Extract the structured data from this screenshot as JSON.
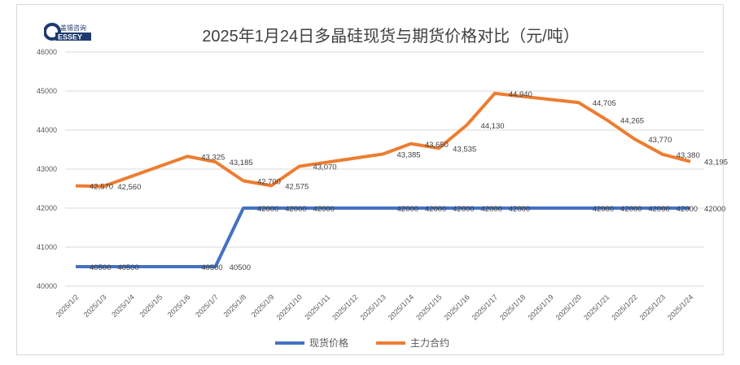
{
  "logo": {
    "cn": "盖锡咨询",
    "en": "GESSEY"
  },
  "chart_data": {
    "type": "line",
    "title": "2025年1月24日多晶硅现货与期货价格对比（元/吨）",
    "categories": [
      "2025/1/2",
      "2025/1/3",
      "2025/1/4",
      "2025/1/5",
      "2025/1/6",
      "2025/1/7",
      "2025/1/8",
      "2025/1/9",
      "2025/1/10",
      "2025/1/11",
      "2025/1/12",
      "2025/1/13",
      "2025/1/14",
      "2025/1/15",
      "2025/1/16",
      "2025/1/17",
      "2025/1/18",
      "2025/1/19",
      "2025/1/20",
      "2025/1/21",
      "2025/1/22",
      "2025/1/23",
      "2025/1/24"
    ],
    "ylim": [
      40000,
      46000
    ],
    "yticks": [
      "40000",
      "41000",
      "42000",
      "43000",
      "44000",
      "45000",
      "46000"
    ],
    "grid": true,
    "legend_position": "bottom",
    "series": [
      {
        "name": "现货价格",
        "color": "#4472c4",
        "label_format": "plain",
        "values": [
          40500,
          40500,
          null,
          null,
          40500,
          40500,
          42000,
          42000,
          42000,
          null,
          null,
          42000,
          42000,
          42000,
          42000,
          42000,
          null,
          null,
          42000,
          42000,
          42000,
          42000,
          42000
        ]
      },
      {
        "name": "主力合约",
        "color": "#ed7d31",
        "label_format": "comma",
        "values": [
          42570,
          42560,
          null,
          null,
          43325,
          43185,
          42700,
          42575,
          43070,
          null,
          null,
          43385,
          43650,
          43535,
          44130,
          44940,
          null,
          null,
          44705,
          44265,
          43770,
          43380,
          43195
        ]
      }
    ]
  }
}
